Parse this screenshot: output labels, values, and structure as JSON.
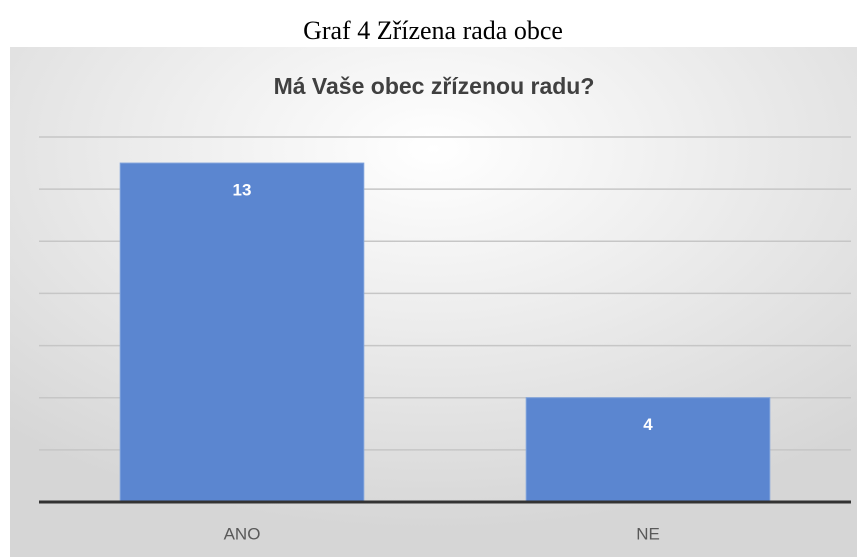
{
  "chart_data": {
    "type": "bar",
    "caption": "Graf 4  Zřízena rada obce",
    "title": "Má Vaše obec zřízenou radu?",
    "categories": [
      "ANO",
      "NE"
    ],
    "values": [
      13,
      4
    ],
    "color": "#5b86d0",
    "ylim": [
      0,
      14
    ],
    "yticks": [
      0,
      2,
      4,
      6,
      8,
      10,
      12,
      14
    ],
    "grid": true,
    "data_labels": true
  }
}
